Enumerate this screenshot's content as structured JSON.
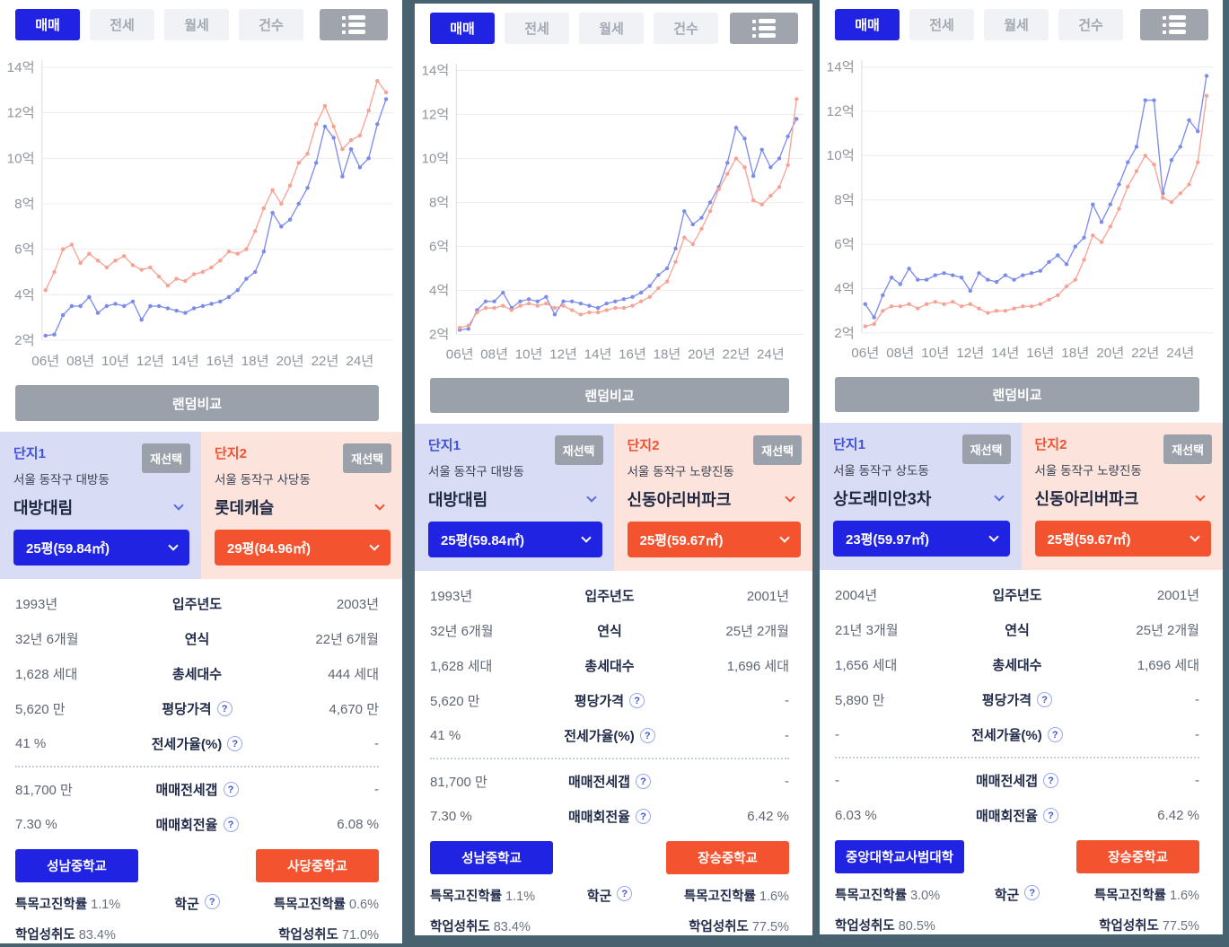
{
  "colors": {
    "frame": "#48626f",
    "accent_blue": "#2023e1",
    "accent_red": "#f4532f",
    "gray_button": "#9aa1aa",
    "card1_bg": "#d8dcf5",
    "card2_bg": "#fce3dc",
    "chart_blue": "#7b8bec",
    "chart_salmon": "#f7a294"
  },
  "help_glyph": "?",
  "tabs": {
    "items": [
      {
        "label": "매매",
        "active": true
      },
      {
        "label": "전세",
        "active": false
      },
      {
        "label": "월세",
        "active": false
      },
      {
        "label": "건수",
        "active": false
      }
    ]
  },
  "random_compare_label": "랜덤비교",
  "reselect_label": "재선택",
  "school_stat_labels": {
    "rate": "특목고진학률",
    "achievement": "학업성취도"
  },
  "panels": [
    {
      "complex1": {
        "tag": "단지1",
        "location": "서울 동작구 대방동",
        "name": "대방대림",
        "size": "25평(59.84㎡)"
      },
      "complex2": {
        "tag": "단지2",
        "location": "서울 동작구 사당동",
        "name": "롯데캐슬",
        "size": "29평(84.96㎡)"
      },
      "table": {
        "rows": [
          {
            "left": "1993년",
            "label": "입주년도",
            "right": "2003년"
          },
          {
            "left": "32년 6개월",
            "label": "연식",
            "right": "22년 6개월"
          },
          {
            "left": "1,628 세대",
            "label": "총세대수",
            "right": "444 세대"
          },
          {
            "left": "5,620 만",
            "label": "평당가격",
            "right": "4,670 만"
          },
          {
            "left": "41 %",
            "label": "전세가율(%)",
            "right": "-"
          },
          {
            "left": "81,700 만",
            "label": "매매전세갭",
            "right": "-"
          },
          {
            "left": "7.30 %",
            "label": "매매회전율",
            "right": "6.08 %"
          }
        ]
      },
      "school": {
        "label": "학군",
        "left": {
          "name": "성남중학교",
          "rate": "1.1%",
          "achievement": "83.4%"
        },
        "right": {
          "name": "사당중학교",
          "rate": "0.6%",
          "achievement": "71.0%"
        }
      },
      "chart_data": {
        "type": "line",
        "x_start": 2006,
        "x_step": 0.5,
        "ylim": [
          2,
          14
        ],
        "ytick_labels": [
          "2억",
          "4억",
          "6억",
          "8억",
          "10억",
          "12억",
          "14억"
        ],
        "xtick_labels": [
          "06년",
          "08년",
          "10년",
          "12년",
          "14년",
          "16년",
          "18년",
          "20년",
          "22년",
          "24년"
        ],
        "series": [
          {
            "name": "대방대림",
            "color": "#7b8bec",
            "values": [
              2.2,
              2.25,
              3.1,
              3.5,
              3.5,
              3.9,
              3.2,
              3.5,
              3.6,
              3.5,
              3.7,
              2.9,
              3.5,
              3.5,
              3.4,
              3.3,
              3.2,
              3.4,
              3.5,
              3.6,
              3.7,
              3.9,
              4.2,
              4.7,
              5.0,
              5.9,
              7.6,
              7.0,
              7.3,
              8.0,
              8.7,
              9.8,
              11.4,
              10.9,
              9.2,
              10.4,
              9.6,
              10.0,
              11.5,
              12.6
            ]
          },
          {
            "name": "롯데캐슬",
            "color": "#f7a294",
            "values": [
              4.2,
              5.0,
              6.0,
              6.2,
              5.4,
              5.8,
              5.5,
              5.2,
              5.5,
              5.7,
              5.3,
              5.1,
              5.2,
              4.8,
              4.4,
              4.7,
              4.6,
              4.9,
              5.0,
              5.2,
              5.5,
              5.9,
              5.8,
              6.0,
              6.8,
              7.8,
              8.6,
              8.0,
              8.8,
              9.8,
              10.2,
              11.5,
              12.3,
              11.4,
              10.4,
              10.8,
              11.0,
              12.1,
              13.4,
              12.9
            ]
          }
        ]
      }
    },
    {
      "complex1": {
        "tag": "단지1",
        "location": "서울 동작구 대방동",
        "name": "대방대림",
        "size": "25평(59.84㎡)"
      },
      "complex2": {
        "tag": "단지2",
        "location": "서울 동작구 노량진동",
        "name": "신동아리버파크",
        "size": "25평(59.67㎡)"
      },
      "table": {
        "rows": [
          {
            "left": "1993년",
            "label": "입주년도",
            "right": "2001년"
          },
          {
            "left": "32년 6개월",
            "label": "연식",
            "right": "25년 2개월"
          },
          {
            "left": "1,628 세대",
            "label": "총세대수",
            "right": "1,696 세대"
          },
          {
            "left": "5,620 만",
            "label": "평당가격",
            "right": "-"
          },
          {
            "left": "41 %",
            "label": "전세가율(%)",
            "right": "-"
          },
          {
            "left": "81,700 만",
            "label": "매매전세갭",
            "right": "-"
          },
          {
            "left": "7.30 %",
            "label": "매매회전율",
            "right": "6.42 %"
          }
        ]
      },
      "school": {
        "label": "학군",
        "left": {
          "name": "성남중학교",
          "rate": "1.1%",
          "achievement": "83.4%"
        },
        "right": {
          "name": "장승중학교",
          "rate": "1.6%",
          "achievement": "77.5%"
        }
      },
      "chart_data": {
        "type": "line",
        "x_start": 2006,
        "x_step": 0.5,
        "ylim": [
          2,
          14
        ],
        "ytick_labels": [
          "2억",
          "4억",
          "6억",
          "8억",
          "10억",
          "12억",
          "14억"
        ],
        "xtick_labels": [
          "06년",
          "08년",
          "10년",
          "12년",
          "14년",
          "16년",
          "18년",
          "20년",
          "22년",
          "24년"
        ],
        "series": [
          {
            "name": "대방대림",
            "color": "#7b8bec",
            "values": [
              2.2,
              2.25,
              3.1,
              3.5,
              3.5,
              3.9,
              3.2,
              3.5,
              3.6,
              3.5,
              3.7,
              2.9,
              3.5,
              3.5,
              3.4,
              3.3,
              3.2,
              3.4,
              3.5,
              3.6,
              3.7,
              3.9,
              4.2,
              4.7,
              5.0,
              5.9,
              7.6,
              7.0,
              7.3,
              8.0,
              8.7,
              9.8,
              11.4,
              10.9,
              9.2,
              10.4,
              9.6,
              10.0,
              11.0,
              11.8
            ]
          },
          {
            "name": "신동아리버파크",
            "color": "#f7a294",
            "values": [
              2.3,
              2.4,
              3.0,
              3.2,
              3.2,
              3.3,
              3.1,
              3.3,
              3.4,
              3.3,
              3.4,
              3.2,
              3.3,
              3.1,
              2.9,
              3.0,
              3.0,
              3.1,
              3.2,
              3.2,
              3.3,
              3.5,
              3.7,
              4.1,
              4.4,
              5.3,
              6.4,
              6.1,
              6.8,
              7.6,
              8.6,
              9.3,
              10.0,
              9.6,
              8.1,
              7.9,
              8.3,
              8.7,
              9.7,
              12.7
            ]
          }
        ]
      }
    },
    {
      "complex1": {
        "tag": "단지1",
        "location": "서울 동작구 상도동",
        "name": "상도래미안3차",
        "size": "23평(59.97㎡)"
      },
      "complex2": {
        "tag": "단지2",
        "location": "서울 동작구 노량진동",
        "name": "신동아리버파크",
        "size": "25평(59.67㎡)"
      },
      "table": {
        "rows": [
          {
            "left": "2004년",
            "label": "입주년도",
            "right": "2001년"
          },
          {
            "left": "21년 3개월",
            "label": "연식",
            "right": "25년 2개월"
          },
          {
            "left": "1,656 세대",
            "label": "총세대수",
            "right": "1,696 세대"
          },
          {
            "left": "5,890 만",
            "label": "평당가격",
            "right": "-"
          },
          {
            "left": "-",
            "label": "전세가율(%)",
            "right": "-"
          },
          {
            "left": "-",
            "label": "매매전세갭",
            "right": "-"
          },
          {
            "left": "6.03 %",
            "label": "매매회전율",
            "right": "6.42 %"
          }
        ]
      },
      "school": {
        "label": "학군",
        "left": {
          "name": "중앙대학교사범대학",
          "rate": "3.0%",
          "achievement": "80.5%"
        },
        "right": {
          "name": "장승중학교",
          "rate": "1.6%",
          "achievement": "77.5%"
        }
      },
      "chart_data": {
        "type": "line",
        "x_start": 2006,
        "x_step": 0.5,
        "ylim": [
          2,
          14
        ],
        "ytick_labels": [
          "2억",
          "4억",
          "6억",
          "8억",
          "10억",
          "12억",
          "14억"
        ],
        "xtick_labels": [
          "06년",
          "08년",
          "10년",
          "12년",
          "14년",
          "16년",
          "18년",
          "20년",
          "22년",
          "24년"
        ],
        "series": [
          {
            "name": "상도래미안3차",
            "color": "#7b8bec",
            "values": [
              3.3,
              2.7,
              3.7,
              4.5,
              4.2,
              4.9,
              4.4,
              4.4,
              4.6,
              4.7,
              4.6,
              4.5,
              3.9,
              4.7,
              4.4,
              4.3,
              4.6,
              4.4,
              4.6,
              4.7,
              4.8,
              5.2,
              5.5,
              5.1,
              5.9,
              6.3,
              7.8,
              7.0,
              7.8,
              8.7,
              9.7,
              10.4,
              12.5,
              12.5,
              8.3,
              9.8,
              10.4,
              11.6,
              11.1,
              13.6
            ]
          },
          {
            "name": "신동아리버파크",
            "color": "#f7a294",
            "values": [
              2.3,
              2.4,
              3.0,
              3.2,
              3.2,
              3.3,
              3.1,
              3.3,
              3.4,
              3.3,
              3.4,
              3.2,
              3.3,
              3.1,
              2.9,
              3.0,
              3.0,
              3.1,
              3.2,
              3.2,
              3.3,
              3.5,
              3.7,
              4.1,
              4.4,
              5.3,
              6.4,
              6.1,
              6.8,
              7.6,
              8.6,
              9.3,
              10.0,
              9.6,
              8.1,
              7.9,
              8.3,
              8.7,
              9.7,
              12.7
            ]
          }
        ]
      }
    }
  ]
}
